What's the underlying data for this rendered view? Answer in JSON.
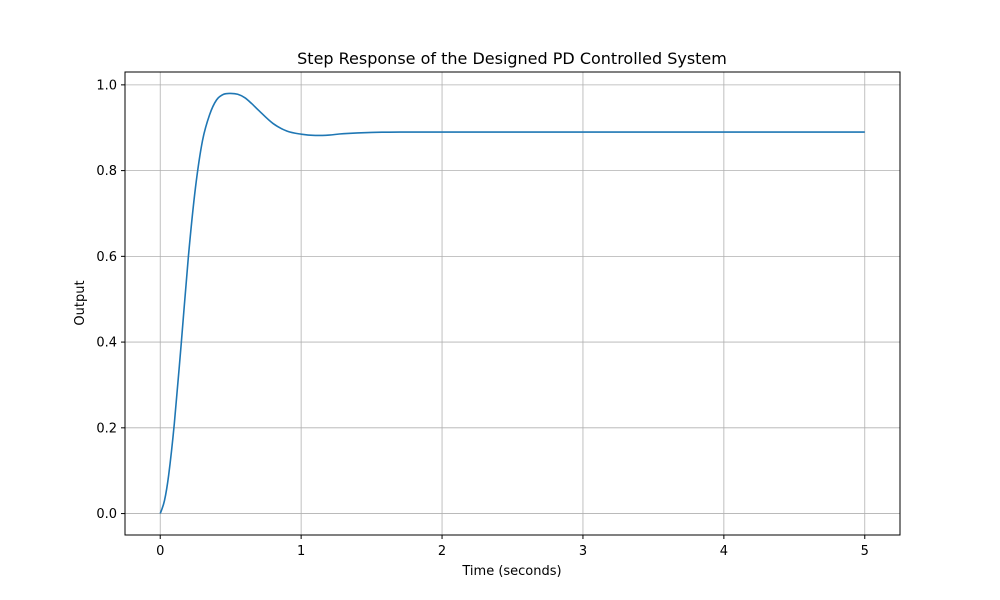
{
  "chart_data": {
    "type": "line",
    "title": "Step Response of the Designed PD Controlled System",
    "xlabel": "Time (seconds)",
    "ylabel": "Output",
    "xlim": [
      -0.25,
      5.25
    ],
    "ylim": [
      -0.05,
      1.03
    ],
    "xticks": [
      0,
      1,
      2,
      3,
      4,
      5
    ],
    "xtick_labels": [
      "0",
      "1",
      "2",
      "3",
      "4",
      "5"
    ],
    "yticks": [
      0.0,
      0.2,
      0.4,
      0.6,
      0.8,
      1.0
    ],
    "ytick_labels": [
      "0.0",
      "0.2",
      "0.4",
      "0.6",
      "0.8",
      "1.0"
    ],
    "grid": true,
    "line_color": "#1f77b4",
    "series": [
      {
        "x": [
          0,
          0.03,
          0.06,
          0.1,
          0.15,
          0.2,
          0.25,
          0.3,
          0.35,
          0.4,
          0.45,
          0.5,
          0.55,
          0.6,
          0.65,
          0.7,
          0.8,
          0.9,
          1.0,
          1.1,
          1.2,
          1.3,
          1.5,
          1.7,
          2.0,
          2.5,
          3.0,
          3.5,
          4.0,
          4.5,
          5.0
        ],
        "y": [
          0.0,
          0.03,
          0.09,
          0.21,
          0.4,
          0.6,
          0.76,
          0.87,
          0.93,
          0.965,
          0.978,
          0.98,
          0.978,
          0.97,
          0.956,
          0.94,
          0.91,
          0.892,
          0.885,
          0.882,
          0.883,
          0.886,
          0.889,
          0.89,
          0.89,
          0.89,
          0.89,
          0.89,
          0.89,
          0.89,
          0.89
        ]
      }
    ]
  }
}
